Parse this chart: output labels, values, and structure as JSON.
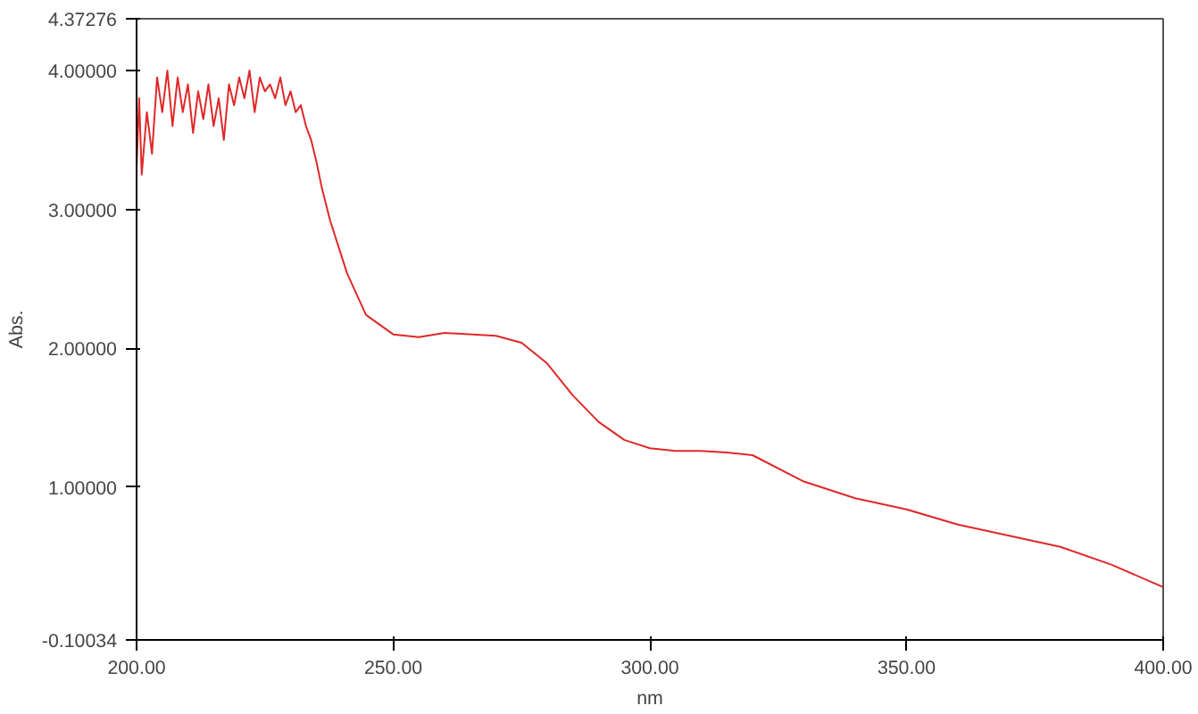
{
  "chart_data": {
    "type": "line",
    "xlabel": "nm",
    "ylabel": "Abs.",
    "xlim": [
      200,
      400
    ],
    "ylim": [
      -0.10034,
      4.37276
    ],
    "xticks": [
      {
        "value": 200,
        "label": "200.00"
      },
      {
        "value": 250,
        "label": "250.00"
      },
      {
        "value": 300,
        "label": "300.00"
      },
      {
        "value": 350,
        "label": "350.00"
      },
      {
        "value": 400,
        "label": "400.00"
      }
    ],
    "yticks": [
      {
        "value": -0.10034,
        "label": "-0.10034"
      },
      {
        "value": 1,
        "label": "1.00000"
      },
      {
        "value": 2,
        "label": "2.00000"
      },
      {
        "value": 3,
        "label": "3.00000"
      },
      {
        "value": 4,
        "label": "4.00000"
      },
      {
        "value": 4.37276,
        "label": "4.37276"
      }
    ],
    "grid": false,
    "line_style": "solid",
    "series": [
      {
        "color": "#e02828",
        "x": [
          200,
          200.5,
          201,
          202,
          203,
          204,
          205,
          206,
          207,
          208,
          209,
          210,
          211,
          212,
          213,
          214,
          215,
          216,
          217,
          218,
          219,
          220,
          221,
          222,
          223,
          224,
          225,
          226,
          227,
          228,
          229,
          230,
          231,
          232,
          233,
          234,
          235,
          236,
          237.7,
          241,
          244.7,
          250,
          255,
          260,
          270,
          275,
          280,
          285,
          290,
          295,
          300,
          305,
          310,
          315,
          320,
          330,
          340,
          350,
          360,
          380,
          390,
          400
        ],
        "values": [
          3.3,
          3.8,
          3.25,
          3.7,
          3.4,
          3.95,
          3.7,
          4.0,
          3.6,
          3.95,
          3.7,
          3.9,
          3.55,
          3.85,
          3.65,
          3.9,
          3.6,
          3.8,
          3.5,
          3.9,
          3.75,
          3.95,
          3.8,
          4.0,
          3.7,
          3.95,
          3.85,
          3.9,
          3.8,
          3.95,
          3.75,
          3.85,
          3.7,
          3.75,
          3.6,
          3.5,
          3.35,
          3.17,
          2.92,
          2.54,
          2.24,
          2.1,
          2.08,
          2.11,
          2.09,
          2.04,
          1.89,
          1.66,
          1.47,
          1.34,
          1.28,
          1.26,
          1.26,
          1.25,
          1.23,
          1.04,
          0.92,
          0.84,
          0.73,
          0.57,
          0.44,
          0.28
        ]
      }
    ]
  }
}
